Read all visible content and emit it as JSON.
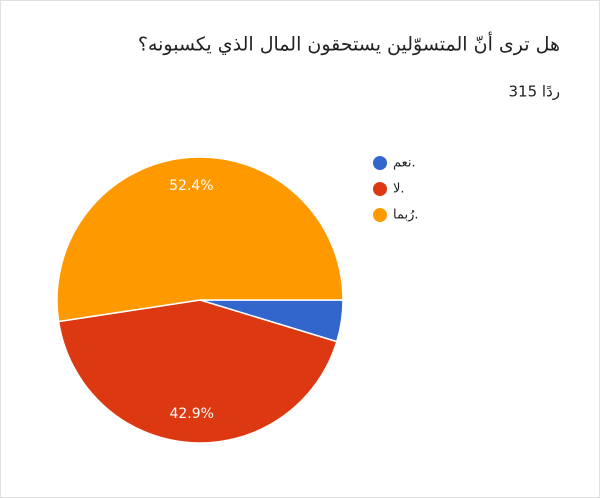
{
  "chart_data": {
    "type": "pie",
    "title": "هل ترى أنّ المتسوّلين يستحقون المال الذي يكسبونه؟",
    "subtitle": "315 ردًا",
    "categories": [
      "نعم.",
      "لا.",
      "رُبما."
    ],
    "values": [
      4.7,
      42.9,
      52.4
    ],
    "value_labels": [
      null,
      "42.9%",
      "52.4%"
    ],
    "colors": [
      "#3366cc",
      "#dc3912",
      "#ff9900"
    ],
    "legend": "right"
  }
}
